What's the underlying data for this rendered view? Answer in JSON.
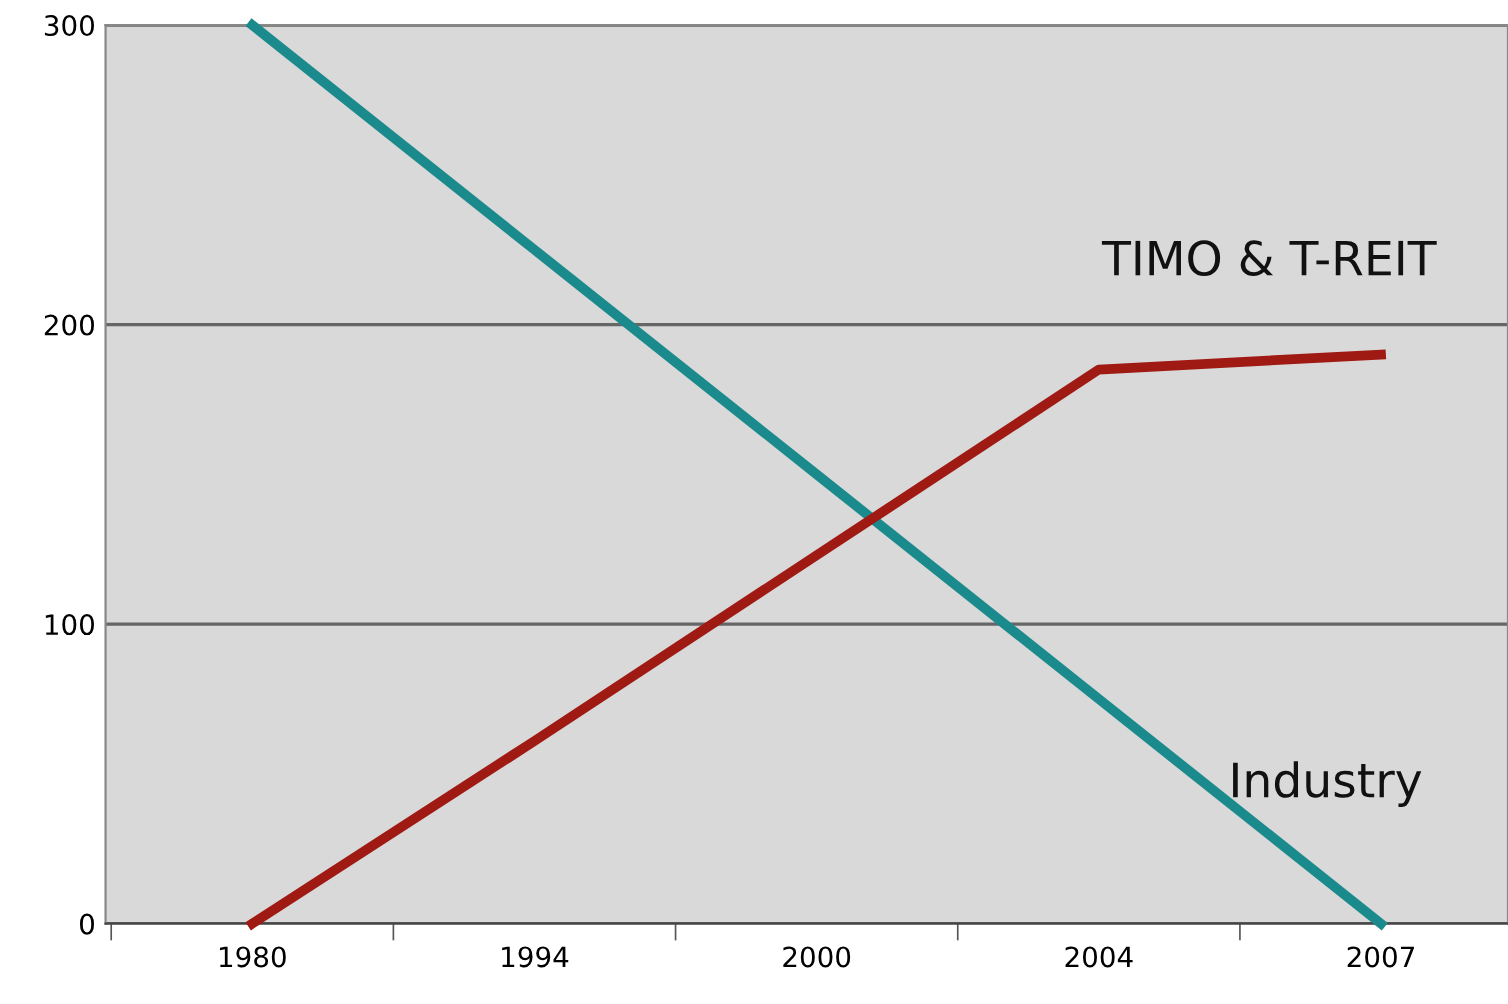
{
  "chart_data": {
    "type": "line",
    "categories": [
      "1980",
      "1994",
      "2000",
      "2004",
      "2007"
    ],
    "series": [
      {
        "name": "Industry",
        "color": "#1b8a8c",
        "values": [
          300,
          225,
          150,
          75,
          0
        ]
      },
      {
        "name": "TIMO & T-REIT",
        "color": "#a01a14",
        "values": [
          0,
          61,
          123,
          185,
          190
        ]
      }
    ],
    "ylim": [
      0,
      300
    ],
    "yticks": [
      0,
      100,
      200,
      300
    ],
    "grid": "y",
    "marker": "none",
    "line_style": "solid"
  }
}
